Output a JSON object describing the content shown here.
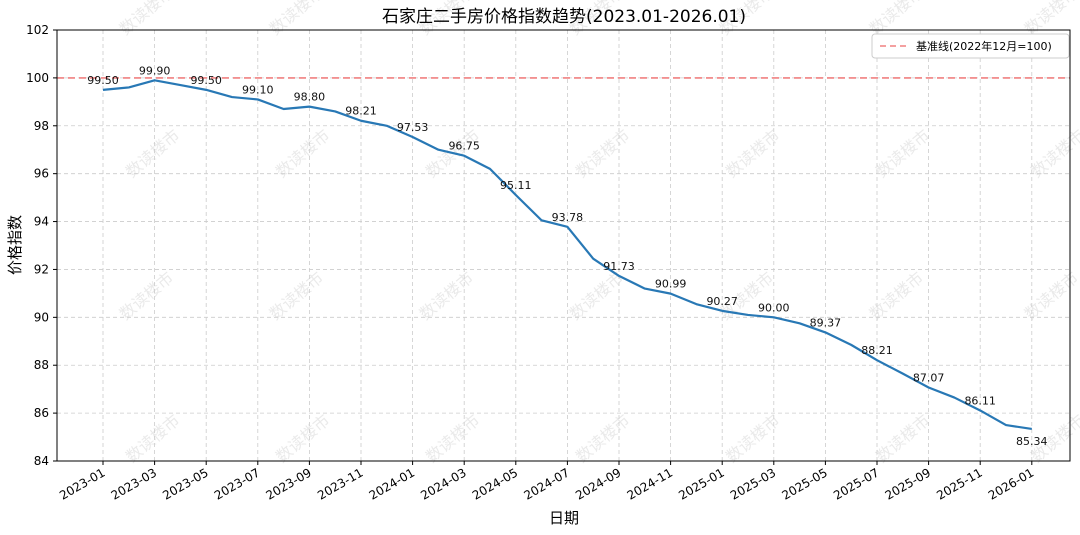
{
  "chart_data": {
    "type": "line",
    "title": "石家庄二手房价格指数趋势(2023.01-2026.01)",
    "xlabel": "日期",
    "ylabel": "价格指数",
    "ylim": [
      84,
      102
    ],
    "yticks": [
      84,
      86,
      88,
      90,
      92,
      94,
      96,
      98,
      100,
      102
    ],
    "grid": true,
    "legend_position": "top-right",
    "watermark_text": "数读楼市",
    "colors": {
      "line": "#2878b5",
      "baseline": "#f08080",
      "grid": "#cccccc",
      "axis": "#000000"
    },
    "x_tick_labels": [
      "2023-01",
      "2023-03",
      "2023-05",
      "2023-07",
      "2023-09",
      "2023-11",
      "2024-01",
      "2024-03",
      "2024-05",
      "2024-07",
      "2024-09",
      "2024-11",
      "2025-01",
      "2025-03",
      "2025-05",
      "2025-07",
      "2025-09",
      "2025-11",
      "2026-01"
    ],
    "series": [
      {
        "name": "二手房价格指数",
        "x": [
          "2023-01",
          "2023-02",
          "2023-03",
          "2023-04",
          "2023-05",
          "2023-06",
          "2023-07",
          "2023-08",
          "2023-09",
          "2023-10",
          "2023-11",
          "2023-12",
          "2024-01",
          "2024-02",
          "2024-03",
          "2024-04",
          "2024-05",
          "2024-06",
          "2024-07",
          "2024-08",
          "2024-09",
          "2024-10",
          "2024-11",
          "2024-12",
          "2025-01",
          "2025-02",
          "2025-03",
          "2025-04",
          "2025-05",
          "2025-06",
          "2025-07",
          "2025-08",
          "2025-09",
          "2025-10",
          "2025-11",
          "2025-12",
          "2026-01"
        ],
        "values": [
          99.5,
          99.6,
          99.9,
          99.7,
          99.5,
          99.2,
          99.1,
          98.7,
          98.8,
          98.6,
          98.21,
          98.0,
          97.53,
          97.0,
          96.75,
          96.2,
          95.11,
          94.05,
          93.78,
          92.45,
          91.73,
          91.2,
          90.99,
          90.55,
          90.27,
          90.1,
          90.0,
          89.75,
          89.37,
          88.85,
          88.21,
          87.65,
          87.07,
          86.65,
          86.11,
          85.5,
          85.34
        ]
      }
    ],
    "data_labels": [
      {
        "x": "2023-01",
        "text": "99.50"
      },
      {
        "x": "2023-03",
        "text": "99.90"
      },
      {
        "x": "2023-05",
        "text": "99.50"
      },
      {
        "x": "2023-07",
        "text": "99.10"
      },
      {
        "x": "2023-09",
        "text": "98.80"
      },
      {
        "x": "2023-11",
        "text": "98.21"
      },
      {
        "x": "2024-01",
        "text": "97.53"
      },
      {
        "x": "2024-03",
        "text": "96.75"
      },
      {
        "x": "2024-05",
        "text": "95.11"
      },
      {
        "x": "2024-07",
        "text": "93.78"
      },
      {
        "x": "2024-09",
        "text": "91.73"
      },
      {
        "x": "2024-11",
        "text": "90.99"
      },
      {
        "x": "2025-01",
        "text": "90.27"
      },
      {
        "x": "2025-03",
        "text": "90.00"
      },
      {
        "x": "2025-05",
        "text": "89.37"
      },
      {
        "x": "2025-07",
        "text": "88.21"
      },
      {
        "x": "2025-09",
        "text": "87.07"
      },
      {
        "x": "2025-11",
        "text": "86.11"
      },
      {
        "x": "2026-01",
        "text": "85.34"
      }
    ],
    "baseline": {
      "value": 100,
      "label": "基准线(2022年12月=100)",
      "style": "dashed"
    }
  }
}
